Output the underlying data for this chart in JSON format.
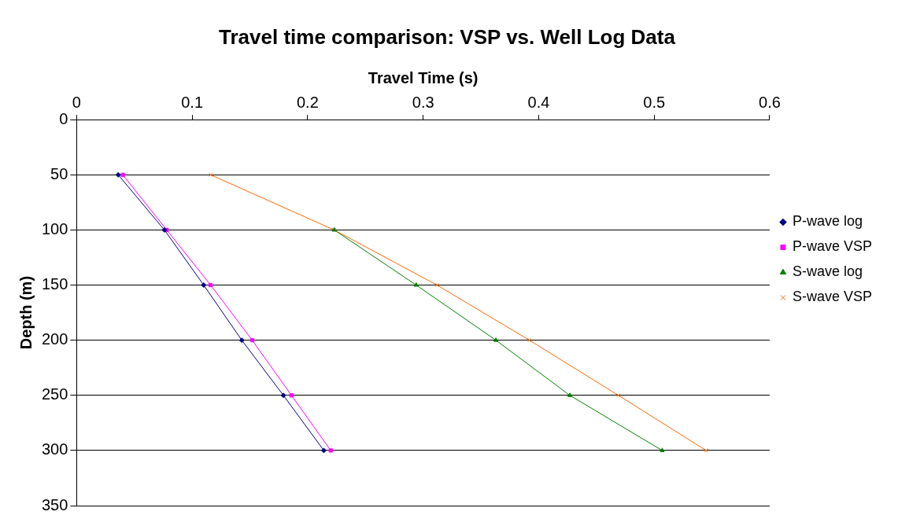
{
  "chart_data": {
    "type": "line",
    "title": "Travel time comparison: VSP vs. Well Log Data",
    "xlabel": "Travel Time (s)",
    "ylabel": "Depth (m)",
    "xlim": [
      0,
      0.6
    ],
    "xticks": [
      0,
      0.1,
      0.2,
      0.3,
      0.4,
      0.5,
      0.6
    ],
    "ylim": [
      350,
      0
    ],
    "yticks": [
      0,
      50,
      100,
      150,
      200,
      250,
      300,
      350
    ],
    "grid": "y",
    "legend": "right",
    "line_style": "solid",
    "series": [
      {
        "name": "P-wave log",
        "color": "#000080",
        "marker": "diamond",
        "x": [
          0.036,
          0.076,
          0.11,
          0.143,
          0.179,
          0.214
        ],
        "values": [
          50,
          100,
          150,
          200,
          250,
          300
        ]
      },
      {
        "name": "P-wave VSP",
        "color": "#ff00ff",
        "marker": "square",
        "x": [
          0.04,
          0.078,
          0.116,
          0.152,
          0.186,
          0.22
        ],
        "values": [
          50,
          100,
          150,
          200,
          250,
          300
        ]
      },
      {
        "name": "S-wave log",
        "color": "#008000",
        "marker": "triangle",
        "x": [
          0.223,
          0.294,
          0.363,
          0.427,
          0.507
        ],
        "values": [
          100,
          150,
          200,
          250,
          300
        ]
      },
      {
        "name": "S-wave VSP",
        "color": "#ff6600",
        "marker": "cross",
        "x": [
          0.116,
          0.223,
          0.312,
          0.392,
          0.469,
          0.545
        ],
        "values": [
          50,
          100,
          150,
          200,
          250,
          300
        ]
      }
    ]
  }
}
